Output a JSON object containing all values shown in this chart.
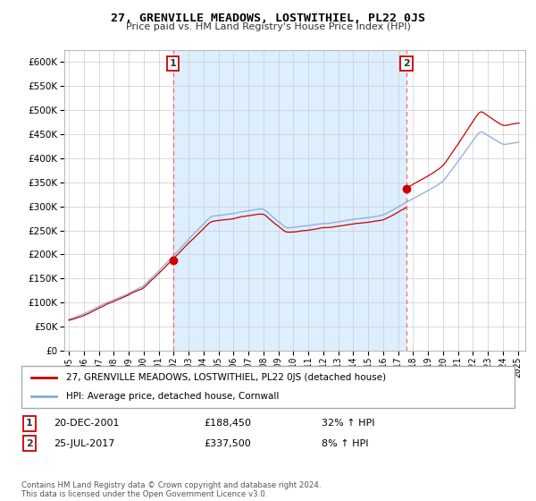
{
  "title": "27, GRENVILLE MEADOWS, LOSTWITHIEL, PL22 0JS",
  "subtitle": "Price paid vs. HM Land Registry's House Price Index (HPI)",
  "legend_label_red": "27, GRENVILLE MEADOWS, LOSTWITHIEL, PL22 0JS (detached house)",
  "legend_label_blue": "HPI: Average price, detached house, Cornwall",
  "purchase1_date": "20-DEC-2001",
  "purchase1_price": "£188,450",
  "purchase1_hpi": "32% ↑ HPI",
  "purchase2_date": "25-JUL-2017",
  "purchase2_price": "£337,500",
  "purchase2_hpi": "8% ↑ HPI",
  "footer": "Contains HM Land Registry data © Crown copyright and database right 2024.\nThis data is licensed under the Open Government Licence v3.0.",
  "ylim": [
    0,
    625000
  ],
  "yticks": [
    0,
    50000,
    100000,
    150000,
    200000,
    250000,
    300000,
    350000,
    400000,
    450000,
    500000,
    550000,
    600000
  ],
  "background_color": "#ffffff",
  "plot_bg_color": "#ffffff",
  "grid_color": "#cccccc",
  "red_color": "#cc0000",
  "blue_color": "#88aadd",
  "fill_color": "#ddeeff",
  "purchase1_x": 2001.97,
  "purchase1_y": 188450,
  "purchase2_x": 2017.56,
  "purchase2_y": 337500,
  "vline1_x": 2001.97,
  "vline2_x": 2017.56,
  "xlim_left": 1994.7,
  "xlim_right": 2025.5
}
